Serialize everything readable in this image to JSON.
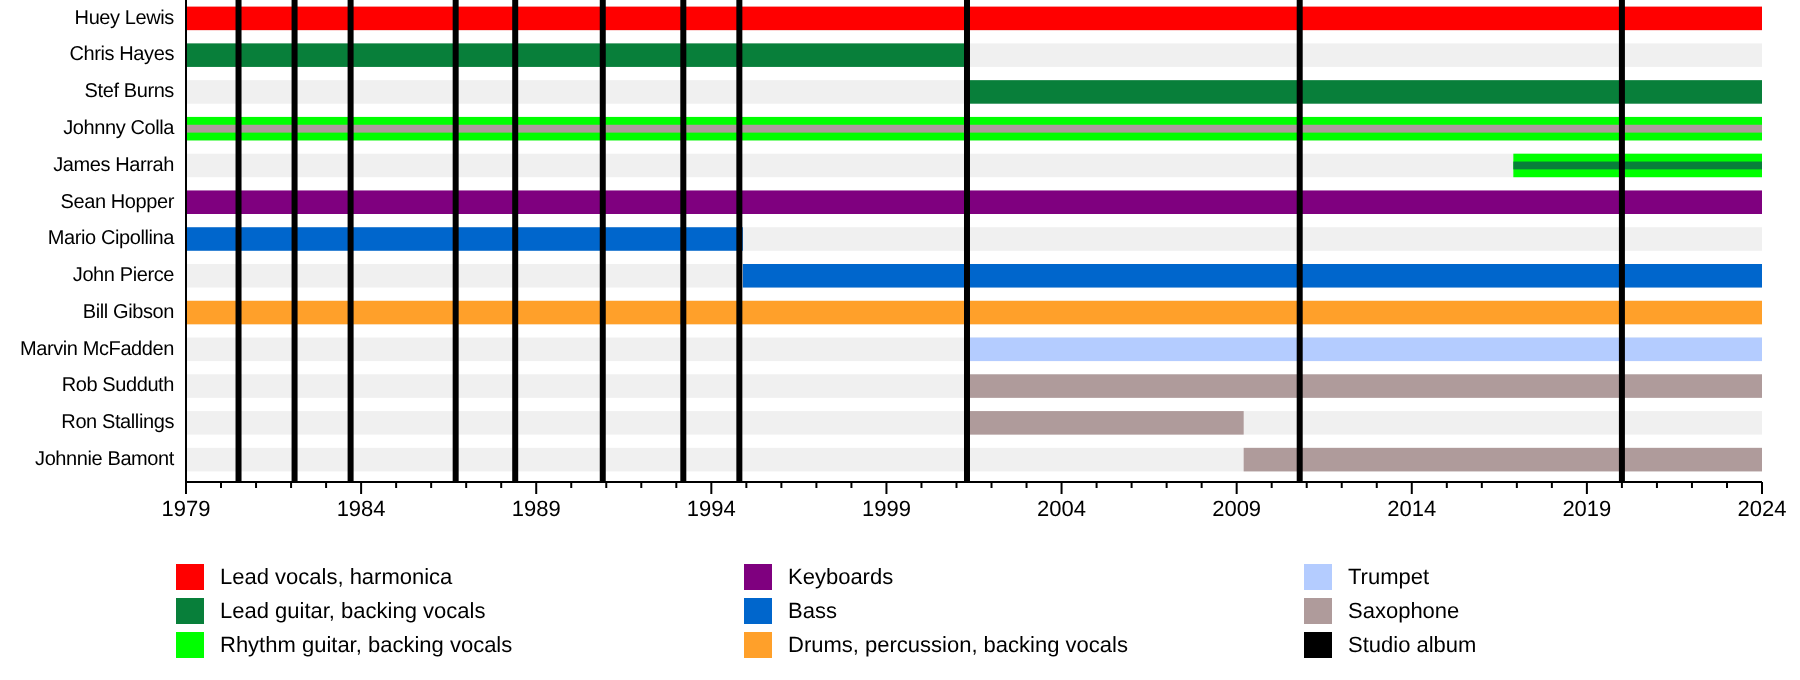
{
  "chart_data": {
    "type": "bar",
    "orientation": "horizontal",
    "categories": [
      "Huey Lewis",
      "Chris Hayes",
      "Stef Burns",
      "Johnny Colla",
      "James Harrah",
      "Sean Hopper",
      "Mario Cipollina",
      "John Pierce",
      "Bill Gibson",
      "Marvin McFadden",
      "Rob Sudduth",
      "Ron Stallings",
      "Johnnie Bamont"
    ],
    "series": [
      {
        "name": "Lead vocals, harmonica",
        "color": "#ff0000",
        "base": [
          1979,
          null,
          null,
          null,
          null,
          null,
          null,
          null,
          null,
          null,
          null,
          null,
          null
        ],
        "values": [
          45,
          null,
          null,
          null,
          null,
          null,
          null,
          null,
          null,
          null,
          null,
          null,
          null
        ]
      },
      {
        "name": "Lead guitar, backing vocals",
        "color": "#087f3a",
        "base": [
          null,
          1979,
          2001.3,
          null,
          null,
          null,
          null,
          null,
          null,
          null,
          null,
          null,
          null
        ],
        "values": [
          null,
          22.3,
          22.7,
          null,
          null,
          null,
          null,
          null,
          null,
          null,
          null,
          null,
          null
        ]
      },
      {
        "name": "Rhythm guitar, backing vocals",
        "color": "#00ff00",
        "base": [
          null,
          null,
          null,
          1979,
          2016.9,
          null,
          null,
          null,
          null,
          null,
          null,
          null,
          null
        ],
        "values": [
          null,
          null,
          null,
          45,
          7.1,
          null,
          null,
          null,
          null,
          null,
          null,
          null,
          null
        ]
      },
      {
        "name": "Keyboards",
        "color": "#7f007f",
        "base": [
          null,
          null,
          null,
          null,
          null,
          1979,
          null,
          null,
          null,
          null,
          null,
          null,
          null
        ],
        "values": [
          null,
          null,
          null,
          null,
          null,
          45,
          null,
          null,
          null,
          null,
          null,
          null,
          null
        ]
      },
      {
        "name": "Bass",
        "color": "#0066cc",
        "base": [
          null,
          null,
          null,
          null,
          null,
          null,
          1979,
          1994.9,
          null,
          null,
          null,
          null,
          null
        ],
        "values": [
          null,
          null,
          null,
          null,
          null,
          null,
          15.9,
          29.1,
          null,
          null,
          null,
          null,
          null
        ]
      },
      {
        "name": "Drums, percussion, backing vocals",
        "color": "#ffa02a",
        "base": [
          null,
          null,
          null,
          null,
          null,
          null,
          null,
          null,
          1979,
          null,
          null,
          null,
          null
        ],
        "values": [
          null,
          null,
          null,
          null,
          null,
          null,
          null,
          null,
          45,
          null,
          null,
          null,
          null
        ]
      },
      {
        "name": "Trumpet",
        "color": "#b4ccff",
        "base": [
          null,
          null,
          null,
          null,
          null,
          null,
          null,
          null,
          null,
          2001.3,
          null,
          null,
          null
        ],
        "values": [
          null,
          null,
          null,
          null,
          null,
          null,
          null,
          null,
          null,
          22.7,
          null,
          null,
          null
        ]
      },
      {
        "name": "Saxophone",
        "color": "#af9b9b",
        "base": [
          null,
          null,
          null,
          null,
          null,
          null,
          null,
          null,
          null,
          null,
          2001.3,
          2001.3,
          2009.2
        ],
        "values": [
          null,
          null,
          null,
          null,
          null,
          null,
          null,
          null,
          null,
          null,
          22.7,
          7.9,
          14.8
        ]
      },
      {
        "color": "#af9b9b",
        "base": [
          null,
          null,
          null,
          1979,
          null,
          null,
          null,
          null,
          null,
          null,
          null,
          null,
          null
        ],
        "values": [
          null,
          null,
          null,
          45,
          null,
          null,
          null,
          null,
          null,
          null,
          null,
          null,
          null
        ]
      },
      {
        "color": "#087f3a",
        "base": [
          null,
          null,
          null,
          null,
          2016.9,
          null,
          null,
          null,
          null,
          null,
          null,
          null,
          null
        ],
        "values": [
          null,
          null,
          null,
          null,
          7.1,
          null,
          null,
          null,
          null,
          null,
          null,
          null,
          null
        ]
      }
    ],
    "xlim": [
      1979,
      2024
    ],
    "xticks": [
      1979,
      {
        "value": 1980,
        "label": null
      },
      {
        "value": 1981,
        "label": null
      },
      {
        "value": 1982,
        "label": null
      },
      {
        "value": 1983,
        "label": null
      },
      1984,
      {
        "value": 1985,
        "label": null
      },
      {
        "value": 1986,
        "label": null
      },
      {
        "value": 1987,
        "label": null
      },
      {
        "value": 1988,
        "label": null
      },
      1989,
      {
        "value": 1990,
        "label": null
      },
      {
        "value": 1991,
        "label": null
      },
      {
        "value": 1992,
        "label": null
      },
      {
        "value": 1993,
        "label": null
      },
      1994,
      {
        "value": 1995,
        "label": null
      },
      {
        "value": 1996,
        "label": null
      },
      {
        "value": 1997,
        "label": null
      },
      {
        "value": 1998,
        "label": null
      },
      1999,
      {
        "value": 2000,
        "label": null
      },
      {
        "value": 2001,
        "label": null
      },
      {
        "value": 2002,
        "label": null
      },
      {
        "value": 2003,
        "label": null
      },
      2004,
      {
        "value": 2005,
        "label": null
      },
      {
        "value": 2006,
        "label": null
      },
      {
        "value": 2007,
        "label": null
      },
      {
        "value": 2008,
        "label": null
      },
      2009,
      {
        "value": 2010,
        "label": null
      },
      {
        "value": 2011,
        "label": null
      },
      {
        "value": 2012,
        "label": null
      },
      {
        "value": 2013,
        "label": null
      },
      2014,
      {
        "value": 2015,
        "label": null
      },
      {
        "value": 2016,
        "label": null
      },
      {
        "value": 2017,
        "label": null
      },
      {
        "value": 2018,
        "label": null
      },
      2019,
      {
        "value": 2020,
        "label": null
      },
      {
        "value": 2021,
        "label": null
      },
      {
        "value": 2022,
        "label": null
      },
      {
        "value": 2023,
        "label": null
      },
      2024
    ],
    "ref_lines": [
      {
        "axis": "x",
        "value": 1980.5,
        "label": "Studio album",
        "color": "#000000"
      },
      {
        "axis": "x",
        "value": 1982.1,
        "color": "#000000"
      },
      {
        "axis": "x",
        "value": 1983.7,
        "color": "#000000"
      },
      {
        "axis": "x",
        "value": 1986.7,
        "color": "#000000"
      },
      {
        "axis": "x",
        "value": 1988.4,
        "color": "#000000"
      },
      {
        "axis": "x",
        "value": 1990.9,
        "color": "#000000"
      },
      {
        "axis": "x",
        "value": 1993.2,
        "color": "#000000"
      },
      {
        "axis": "x",
        "value": 1994.8,
        "color": "#000000"
      },
      {
        "axis": "x",
        "value": 2001.3,
        "color": "#000000"
      },
      {
        "axis": "x",
        "value": 2010.8,
        "color": "#000000"
      },
      {
        "axis": "x",
        "value": 2020.0,
        "color": "#000000"
      }
    ],
    "legend": "bottom",
    "grid": false
  }
}
